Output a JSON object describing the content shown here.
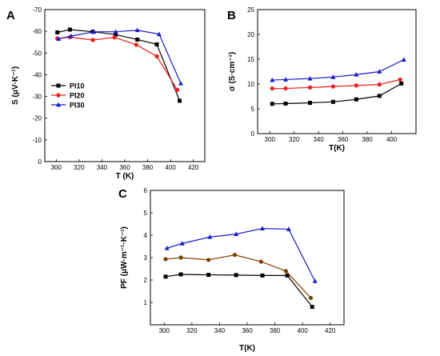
{
  "chart_data": [
    {
      "panel": "A",
      "type": "line",
      "xlabel": "T (K)",
      "ylabel": "S (μV·K⁻¹)",
      "xlim": [
        290,
        430
      ],
      "ylim": [
        -70,
        0
      ],
      "y_inverted": true,
      "x_ticks": [
        300,
        320,
        340,
        360,
        380,
        400,
        420
      ],
      "y_ticks": [
        -70,
        -60,
        -50,
        -40,
        -30,
        -20,
        -10,
        0
      ],
      "legend_position": "left-middle",
      "series": [
        {
          "name": "PI10",
          "color": "#000000",
          "marker": "square",
          "points": [
            [
              301,
              -59.5
            ],
            [
              312,
              -60.8
            ],
            [
              332,
              -59.8
            ],
            [
              352,
              -58.5
            ],
            [
              371,
              -56.2
            ],
            [
              388,
              -54
            ],
            [
              408,
              -28
            ]
          ]
        },
        {
          "name": "PI20",
          "color": "#ee1c1c",
          "marker": "circle",
          "points": [
            [
              301,
              -56.7
            ],
            [
              312,
              -57.3
            ],
            [
              332,
              -56
            ],
            [
              351,
              -57.2
            ],
            [
              370,
              -53.8
            ],
            [
              388,
              -48.5
            ],
            [
              406,
              -33
            ]
          ]
        },
        {
          "name": "PI30",
          "color": "#1a1acc",
          "marker": "triangle",
          "points": [
            [
              302,
              -56.5
            ],
            [
              313,
              -57.8
            ],
            [
              333,
              -59.8
            ],
            [
              352,
              -59.8
            ],
            [
              371,
              -60.5
            ],
            [
              390,
              -58.7
            ],
            [
              409,
              -36
            ]
          ]
        }
      ]
    },
    {
      "panel": "B",
      "type": "line",
      "xlabel": "T(K)",
      "ylabel": "σ (S·cm⁻¹)",
      "xlim": [
        290,
        420
      ],
      "ylim": [
        0,
        25
      ],
      "x_ticks": [
        300,
        320,
        340,
        360,
        380,
        400
      ],
      "y_ticks": [
        0,
        5,
        10,
        15,
        20,
        25
      ],
      "series": [
        {
          "name": "PI10",
          "color": "#000000",
          "marker": "square",
          "points": [
            [
              302,
              6.0
            ],
            [
              313,
              6.05
            ],
            [
              333,
              6.2
            ],
            [
              352,
              6.4
            ],
            [
              371,
              6.9
            ],
            [
              390,
              7.6
            ],
            [
              408,
              10.1
            ]
          ]
        },
        {
          "name": "PI20",
          "color": "#ee1c1c",
          "marker": "circle",
          "points": [
            [
              302,
              9.1
            ],
            [
              313,
              9.1
            ],
            [
              333,
              9.3
            ],
            [
              352,
              9.5
            ],
            [
              371,
              9.7
            ],
            [
              390,
              9.9
            ],
            [
              407,
              10.9
            ]
          ]
        },
        {
          "name": "PI30",
          "color": "#1a1acc",
          "marker": "triangle",
          "points": [
            [
              302,
              10.8
            ],
            [
              313,
              10.9
            ],
            [
              333,
              11.1
            ],
            [
              352,
              11.4
            ],
            [
              371,
              11.9
            ],
            [
              390,
              12.5
            ],
            [
              410,
              14.9
            ]
          ]
        }
      ]
    },
    {
      "panel": "C",
      "type": "line",
      "xlabel": "T(K)",
      "ylabel": "PF (μW·m⁻¹·K⁻¹)",
      "xlim": [
        290,
        430
      ],
      "ylim": [
        0,
        6
      ],
      "x_ticks": [
        300,
        320,
        340,
        360,
        380,
        400,
        420
      ],
      "y_ticks": [
        1,
        2,
        3,
        4,
        5,
        6
      ],
      "series": [
        {
          "name": "PI10",
          "color": "#000000",
          "marker": "square",
          "points": [
            [
              301,
              2.15
            ],
            [
              312,
              2.25
            ],
            [
              332,
              2.23
            ],
            [
              352,
              2.22
            ],
            [
              371,
              2.2
            ],
            [
              389,
              2.2
            ],
            [
              407,
              0.8
            ]
          ]
        },
        {
          "name": "PI20",
          "color": "#7b3f00",
          "marker": "circle",
          "points": [
            [
              301,
              2.93
            ],
            [
              312,
              3.0
            ],
            [
              332,
              2.9
            ],
            [
              351,
              3.12
            ],
            [
              370,
              2.82
            ],
            [
              388,
              2.4
            ],
            [
              406,
              1.2
            ]
          ]
        },
        {
          "name": "PI30",
          "color": "#1a1acc",
          "marker": "triangle",
          "points": [
            [
              302,
              3.42
            ],
            [
              313,
              3.63
            ],
            [
              333,
              3.92
            ],
            [
              352,
              4.05
            ],
            [
              371,
              4.3
            ],
            [
              390,
              4.27
            ],
            [
              409,
              1.95
            ]
          ]
        }
      ]
    }
  ]
}
